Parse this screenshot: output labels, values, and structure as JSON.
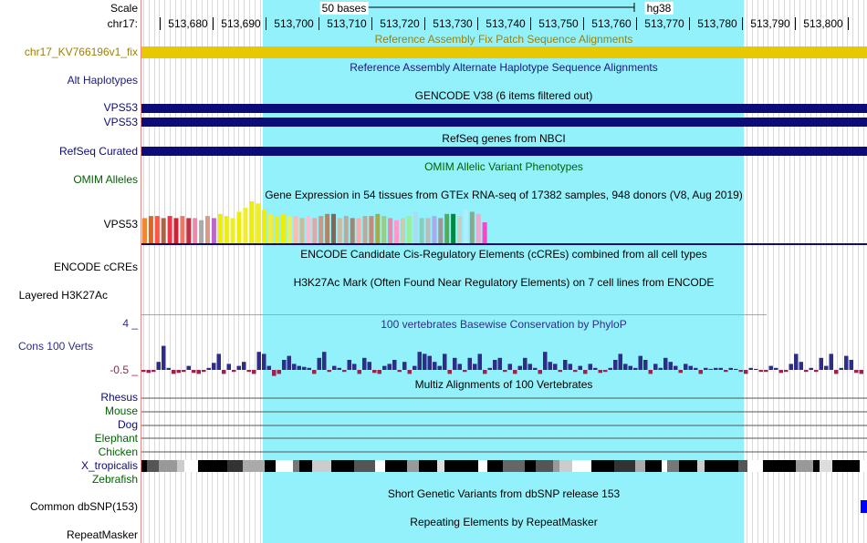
{
  "ruler": {
    "scale_label": "Scale",
    "chrom_label": "chr17:",
    "scale_text": "50 bases",
    "assembly": "hg38",
    "ticks": [
      "513,680",
      "513,690",
      "513,700",
      "513,710",
      "513,720",
      "513,730",
      "513,740",
      "513,750",
      "513,760",
      "513,770",
      "513,780",
      "513,790",
      "513,800"
    ]
  },
  "tracks": {
    "fix_patch": {
      "label": "chr17_KV766196v1_fix",
      "title": "Reference Assembly Fix Patch Sequence Alignments",
      "color": "#e8c800",
      "label_color": "#a08000"
    },
    "alt_haplotypes": {
      "label": "Alt Haplotypes",
      "title": "Reference Assembly Alternate Haplotype Sequence Alignments",
      "color": "#1a1a7a"
    },
    "gencode": {
      "title": "GENCODE V38 (6 items filtered out)",
      "items": [
        "VPS53",
        "VPS53"
      ],
      "color": "#0c0c78"
    },
    "refseq": {
      "label": "RefSeq Curated",
      "title": "RefSeq genes from NBCI",
      "color": "#0c0c78"
    },
    "omim": {
      "label": "OMIM Alleles",
      "title": "OMIM Allelic Variant Phenotypes",
      "color": "#006400"
    },
    "gtex": {
      "label": "VPS53",
      "title": "Gene Expression in 54 tissues from GTEx RNA-seq of 17382 samples, 948 donors (V8, Aug 2019)"
    },
    "encode_ccre": {
      "label": "ENCODE cCREs",
      "title": "ENCODE Candidate Cis-Regulatory Elements (cCREs) combined from all cell types"
    },
    "h3k27ac": {
      "label": "Layered H3K27Ac",
      "title": "H3K27Ac Mark (Often Found Near Regulatory Elements) on 7 cell lines from ENCODE"
    },
    "phylop": {
      "label": "Cons 100 Verts",
      "title": "100 vertebrates Basewise Conservation by PhyloP",
      "max_label": "4 _",
      "min_label": "-0.5 _",
      "color": "#2e2e88",
      "neg_color": "#a0204e"
    },
    "multiz": {
      "title": "Multiz Alignments of 100 Vertebrates",
      "species": [
        {
          "name": "Rhesus",
          "color": "#0c0c78"
        },
        {
          "name": "Mouse",
          "color": "#006400"
        },
        {
          "name": "Dog",
          "color": "#0c0c78"
        },
        {
          "name": "Elephant",
          "color": "#006400"
        },
        {
          "name": "Chicken",
          "color": "#006400"
        },
        {
          "name": "X_tropicalis",
          "color": "#0c0c78"
        },
        {
          "name": "Zebrafish",
          "color": "#006400"
        }
      ]
    },
    "dbsnp": {
      "label": "Common dbSNP(153)",
      "title": "Short Genetic Variants from dbSNP release 153",
      "color": "#0000ff"
    },
    "repeatmasker": {
      "label": "RepeatMasker",
      "title": "Repeating Elements by RepeatMasker"
    }
  },
  "chart_data": [
    {
      "type": "bar",
      "title": "Gene Expression in 54 tissues from GTEx RNA-seq of 17382 samples, 948 donors (V8, Aug 2019)",
      "values": [
        0.6,
        0.65,
        0.65,
        0.6,
        0.65,
        0.6,
        0.65,
        0.6,
        0.6,
        0.55,
        0.65,
        0.6,
        0.7,
        0.65,
        0.6,
        0.75,
        0.85,
        1.0,
        0.95,
        0.8,
        0.7,
        0.65,
        0.7,
        0.65,
        0.65,
        0.6,
        0.65,
        0.6,
        0.65,
        0.7,
        0.7,
        0.6,
        0.65,
        0.6,
        0.6,
        0.65,
        0.65,
        0.7,
        0.65,
        0.6,
        0.55,
        0.6,
        0.65,
        0.75,
        0.6,
        0.6,
        0.65,
        0.6,
        0.7,
        0.7,
        0.65,
        0.8,
        0.75,
        0.7,
        0.5
      ],
      "colors": [
        "#ee8833",
        "#dd6622",
        "#ff5544",
        "#aa6644",
        "#ee3344",
        "#cc2233",
        "#ee7766",
        "#bb3344",
        "#ee88aa",
        "#aaaaaa",
        "#dd9988",
        "#bb66cc",
        "#eeee00",
        "#eeee11",
        "#eeee22",
        "#eeee00",
        "#eeee33",
        "#eeee00",
        "#eeee22",
        "#eeee00",
        "#eeee44",
        "#eeee11",
        "#eeee00",
        "#eeee55",
        "#ffbbaa",
        "#ccbb99",
        "#ffbbcc",
        "#ddaaaa",
        "#cc9988",
        "#aa8866",
        "#886655",
        "#ccbbaa",
        "#bbaa99",
        "#998877",
        "#ffaaaa",
        "#bbaa99",
        "#cc8877",
        "#aaaa44",
        "#99cc88",
        "#ee88aa",
        "#ff99cc",
        "#ccccaa",
        "#99ee99",
        "#aaddee",
        "#88ccbb",
        "#bbbbbb",
        "#aaaaee",
        "#999999",
        "#55aa55",
        "#008844",
        "#ccccbb",
        "#aaeeff",
        "#88aa88",
        "#eeaacc",
        "#ff44cc"
      ]
    },
    {
      "type": "bar",
      "title": "100 vertebrates Basewise Conservation by PhyloP",
      "ylim": [
        -0.5,
        4
      ],
      "values": [
        -0.1,
        -0.15,
        -0.1,
        0.4,
        1.2,
        0.1,
        -0.2,
        -0.15,
        -0.1,
        0.2,
        -0.15,
        -0.2,
        -0.1,
        0.1,
        0.35,
        0.8,
        -0.2,
        0.3,
        -0.1,
        0.2,
        0.4,
        -0.1,
        -0.2,
        0.9,
        0.8,
        0.2,
        -0.3,
        -0.2,
        0.5,
        0.7,
        0.3,
        0.2,
        0.15,
        0.1,
        -0.2,
        0.6,
        0.9,
        -0.1,
        0.2,
        0.1,
        -0.1,
        0.5,
        0.3,
        -0.2,
        0.6,
        0.4,
        -0.15,
        -0.2,
        0.2,
        0.3,
        0.5,
        -0.1,
        0.4,
        -0.2,
        0.2,
        0.9,
        0.8,
        0.7,
        0.4,
        0.2,
        0.8,
        -0.2,
        0.6,
        0.3,
        -0.1,
        0.6,
        0.3,
        0.8,
        -0.2,
        0.1,
        0.5,
        0.6,
        -0.1,
        0.3,
        -0.2,
        0.2,
        0.6,
        0.3,
        0.1,
        -0.2,
        0.9,
        0.4,
        0.3,
        -0.1,
        0.5,
        0.3,
        -0.1,
        0.2,
        -0.2,
        0.3,
        0.1,
        -0.15,
        -0.1,
        0.1,
        0.5,
        0.8,
        0.3,
        0.2,
        0.1,
        0.7,
        0.5,
        -0.2,
        0.3,
        0.1,
        0.6,
        0.4,
        0.2,
        -0.15,
        0.3,
        0.2,
        0.1,
        -0.2,
        0.1,
        0.05,
        0.1,
        0.1,
        -0.1,
        0.1,
        0.05,
        -0.1,
        -0.2,
        0.1,
        0.05,
        -0.1,
        -0.1,
        0.2,
        0.1,
        -0.15,
        -0.1,
        0.3,
        0.8,
        0.4,
        -0.1,
        0.1,
        -0.1,
        0.6,
        0.2,
        0.8,
        -0.2,
        0.1,
        0.7,
        0.5,
        -0.15,
        -0.2
      ]
    }
  ]
}
